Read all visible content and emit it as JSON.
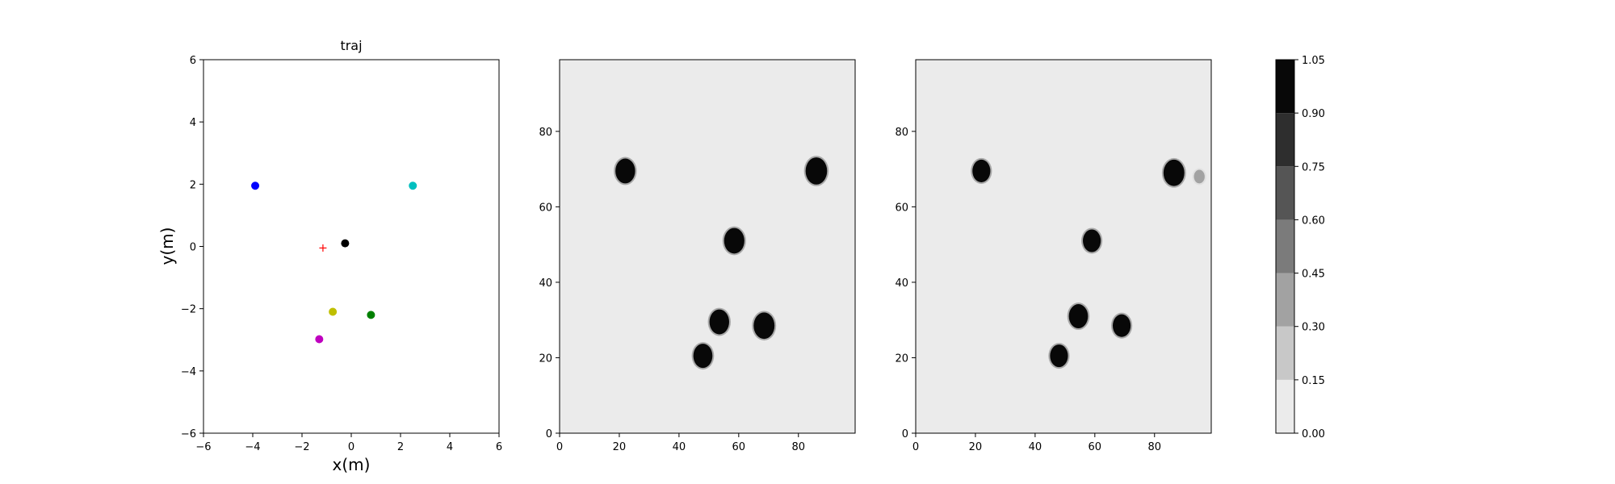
{
  "chart_data": [
    {
      "type": "scatter",
      "title": "traj",
      "xlabel": "x(m)",
      "ylabel": "y(m)",
      "xlim": [
        -6,
        6
      ],
      "ylim": [
        -6,
        6
      ],
      "xticks": [
        -6,
        -4,
        -2,
        0,
        2,
        4,
        6
      ],
      "yticks": [
        -6,
        -4,
        -2,
        0,
        2,
        4,
        6
      ],
      "grid": false,
      "points": [
        {
          "x": -3.9,
          "y": 1.95,
          "color": "#0000ff",
          "marker": "circle"
        },
        {
          "x": 2.5,
          "y": 1.95,
          "color": "#00bfbf",
          "marker": "circle"
        },
        {
          "x": -0.25,
          "y": 0.1,
          "color": "#000000",
          "marker": "circle"
        },
        {
          "x": -1.15,
          "y": -0.05,
          "color": "#ff0000",
          "marker": "plus"
        },
        {
          "x": -0.75,
          "y": -2.1,
          "color": "#bfbf00",
          "marker": "circle"
        },
        {
          "x": 0.8,
          "y": -2.2,
          "color": "#008000",
          "marker": "circle"
        },
        {
          "x": -1.3,
          "y": -2.98,
          "color": "#bf00bf",
          "marker": "circle"
        }
      ]
    },
    {
      "type": "heatmap",
      "title": "",
      "xlim": [
        0,
        99
      ],
      "ylim": [
        0,
        99
      ],
      "xticks": [
        0,
        20,
        40,
        60,
        80
      ],
      "yticks": [
        0,
        20,
        40,
        60,
        80
      ],
      "background_level": 0.0,
      "blobs": [
        {
          "cx": 22,
          "cy": 69.5,
          "r": 3.3,
          "level": 1.0
        },
        {
          "cx": 86,
          "cy": 69.5,
          "r": 3.6,
          "level": 1.0
        },
        {
          "cx": 58.5,
          "cy": 51,
          "r": 3.4,
          "level": 1.0
        },
        {
          "cx": 53.5,
          "cy": 29.5,
          "r": 3.3,
          "level": 1.0
        },
        {
          "cx": 68.5,
          "cy": 28.5,
          "r": 3.5,
          "level": 1.0
        },
        {
          "cx": 48,
          "cy": 20.5,
          "r": 3.2,
          "level": 1.0
        }
      ]
    },
    {
      "type": "heatmap",
      "title": "",
      "xlim": [
        0,
        99
      ],
      "ylim": [
        0,
        99
      ],
      "xticks": [
        0,
        20,
        40,
        60,
        80
      ],
      "yticks": [
        0,
        20,
        40,
        60,
        80
      ],
      "background_level": 0.0,
      "blobs": [
        {
          "cx": 22,
          "cy": 69.5,
          "r": 3.0,
          "level": 1.0
        },
        {
          "cx": 86.5,
          "cy": 69,
          "r": 3.5,
          "level": 1.0
        },
        {
          "cx": 59,
          "cy": 51,
          "r": 3.0,
          "level": 1.0
        },
        {
          "cx": 54.5,
          "cy": 31,
          "r": 3.2,
          "level": 1.0
        },
        {
          "cx": 69,
          "cy": 28.5,
          "r": 3.0,
          "level": 1.0
        },
        {
          "cx": 48,
          "cy": 20.5,
          "r": 3.0,
          "level": 1.0
        },
        {
          "cx": 95,
          "cy": 68,
          "r": 1.8,
          "level": 0.3
        }
      ]
    }
  ],
  "colorbar": {
    "levels": [
      0.0,
      0.15,
      0.3,
      0.45,
      0.6,
      0.75,
      0.9,
      1.05
    ],
    "tick_labels": [
      "0.00",
      "0.15",
      "0.30",
      "0.45",
      "0.60",
      "0.75",
      "0.90",
      "1.05"
    ],
    "colors": [
      "#ebebeb",
      "#c8c8c8",
      "#a2a2a2",
      "#7b7b7b",
      "#555555",
      "#2e2e2e",
      "#080808"
    ]
  }
}
